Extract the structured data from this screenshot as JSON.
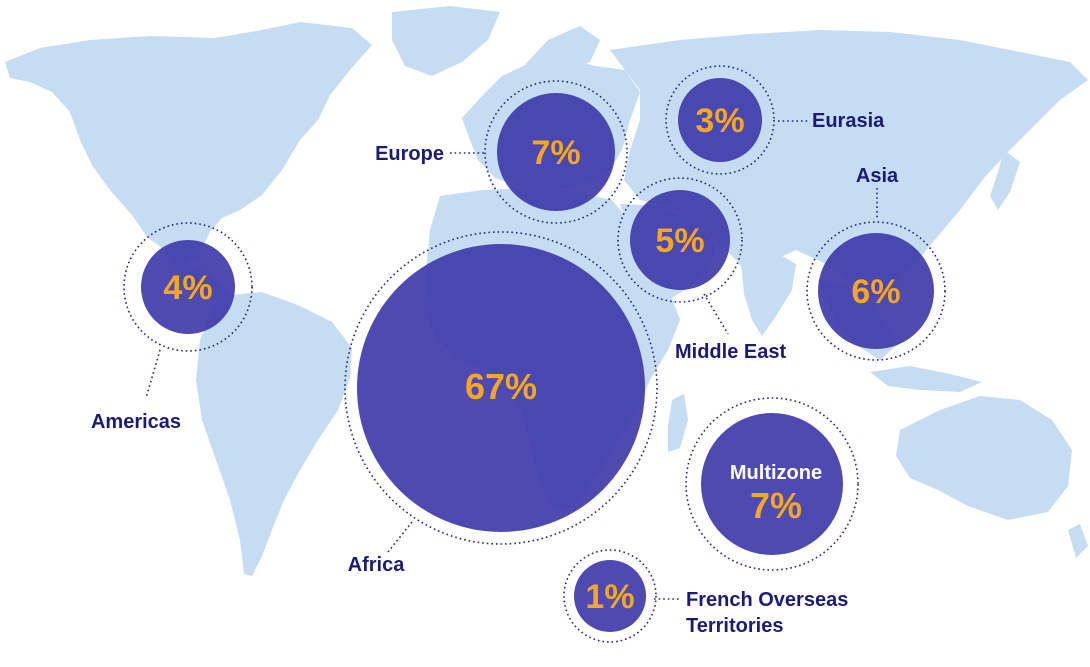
{
  "colors": {
    "land": "#c5dcf3",
    "bubble": "#3b36a8",
    "percent_text": "#f5a623",
    "label_text": "#1b1a78",
    "ring": "#23238a"
  },
  "regions": [
    {
      "id": "africa",
      "label": "Africa",
      "percent": "67%"
    },
    {
      "id": "europe",
      "label": "Europe",
      "percent": "7%"
    },
    {
      "id": "multizone",
      "label": "Multizone",
      "percent": "7%"
    },
    {
      "id": "asia",
      "label": "Asia",
      "percent": "6%"
    },
    {
      "id": "middle-east",
      "label": "Middle East",
      "percent": "5%"
    },
    {
      "id": "americas",
      "label": "Americas",
      "percent": "4%"
    },
    {
      "id": "eurasia",
      "label": "Eurasia",
      "percent": "3%"
    },
    {
      "id": "french-overseas",
      "label_line1": "French Overseas",
      "label_line2": "Territories",
      "percent": "1%"
    }
  ]
}
